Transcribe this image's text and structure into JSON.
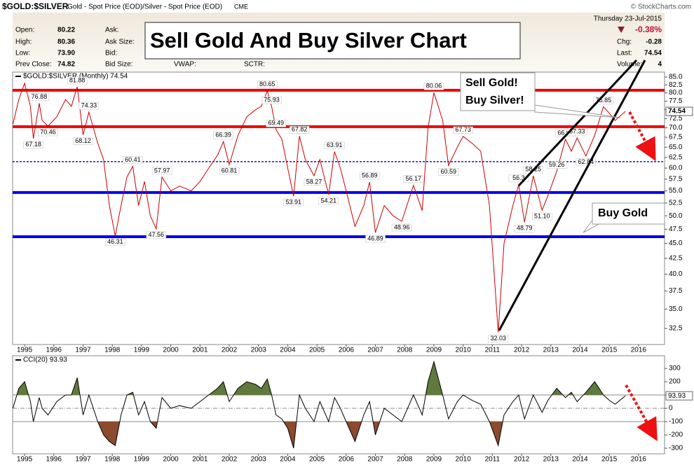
{
  "header": {
    "symbol": "$GOLD:$SILVER",
    "description": "Gold - Spot Price (EOD)/Silver - Spot Price (EOD)",
    "exchange": "CME",
    "source": "© StockCharts.com",
    "date": "Thursday 23-Jul-2015",
    "change_pct": "-0.38%",
    "stats": [
      [
        "Open:",
        "80.22"
      ],
      [
        "High:",
        "80.36"
      ],
      [
        "Low:",
        "73.90"
      ],
      [
        "Prev Close:",
        "74.82"
      ]
    ],
    "fields": [
      "Ask:",
      "Ask Size:",
      "Bid:",
      "Bid Size:",
      "VWAP:",
      "SCTR:"
    ],
    "quote": [
      [
        "Chg:",
        "-0.28"
      ],
      [
        "Last:",
        "74.54"
      ],
      [
        "Volume:",
        "4"
      ]
    ],
    "title": "Sell Gold And Buy Silver Chart",
    "notes": [
      "Sell Gold!",
      "Buy Silver!",
      "Buy Gold"
    ]
  },
  "chart_data": [
    {
      "type": "line",
      "log_scale": true,
      "x": [
        1994.6,
        1994.8,
        1995.0,
        1995.2,
        1995.3,
        1995.5,
        1995.6,
        1995.8,
        1996.1,
        1996.4,
        1996.6,
        1996.8,
        1997.0,
        1997.2,
        1997.5,
        1997.7,
        1997.9,
        1998.1,
        1998.3,
        1998.5,
        1998.7,
        1998.9,
        1999.1,
        1999.3,
        1999.5,
        1999.7,
        2000.0,
        2000.3,
        2000.7,
        2001.0,
        2001.3,
        2001.6,
        2001.8,
        2002.0,
        2002.3,
        2002.6,
        2002.9,
        2003.1,
        2003.3,
        2003.45,
        2003.6,
        2003.8,
        2004.0,
        2004.2,
        2004.4,
        2004.6,
        2004.9,
        2005.1,
        2005.4,
        2005.6,
        2005.8,
        2006.0,
        2006.3,
        2006.6,
        2006.8,
        2007.0,
        2007.3,
        2007.6,
        2007.9,
        2008.3,
        2008.6,
        2008.8,
        2009.0,
        2009.3,
        2009.5,
        2009.8,
        2010.0,
        2010.3,
        2010.6,
        2010.9,
        2011.2,
        2011.4,
        2011.7,
        2011.9,
        2012.1,
        2012.4,
        2012.7,
        2012.9,
        2013.2,
        2013.5,
        2013.7,
        2013.9,
        2014.2,
        2014.5,
        2014.8,
        2015.0,
        2015.2,
        2015.55
      ],
      "series": [
        {
          "name": "$GOLD:$SILVER (Monthly) 74.54",
          "color": "#cc0000",
          "values": [
            71,
            78,
            83,
            76,
            67.18,
            76.88,
            72,
            70.46,
            73,
            78,
            76,
            81.88,
            68.12,
            74.33,
            66,
            62,
            52,
            46.31,
            52,
            58,
            60.41,
            52,
            57,
            50,
            47.56,
            57.97,
            55,
            56,
            55,
            57,
            60,
            63,
            66.39,
            60.81,
            68,
            73,
            75,
            76,
            80.65,
            75.93,
            69.49,
            67,
            60,
            53.91,
            67.82,
            62,
            58.27,
            62,
            54.21,
            63.91,
            60,
            55,
            48,
            52,
            56.89,
            46.89,
            52,
            50,
            48.96,
            56.17,
            51,
            70,
            80.06,
            72,
            60.59,
            65,
            67.73,
            66,
            64,
            52,
            32.03,
            45,
            52,
            56.3,
            48.79,
            58.25,
            51.1,
            54,
            59.26,
            66.98,
            64,
            67.33,
            62.84,
            68,
            75.85,
            74,
            72,
            74.54
          ],
          "value_labels": [
            null,
            null,
            null,
            null,
            "67.18",
            "76.88",
            null,
            "70.46",
            null,
            null,
            null,
            "81.88",
            "68.12",
            "74.33",
            null,
            null,
            null,
            "46.31",
            null,
            null,
            "60.41",
            null,
            null,
            null,
            "47.56",
            "57.97",
            null,
            null,
            null,
            null,
            null,
            null,
            "66.39",
            "60.81",
            null,
            null,
            null,
            null,
            "80.65",
            "75.93",
            "69.49",
            null,
            null,
            "53.91",
            "67.82",
            null,
            "58.27",
            null,
            "54.21",
            "63.91",
            null,
            null,
            null,
            null,
            "56.89",
            "46.89",
            null,
            null,
            "48.96",
            "56.17",
            null,
            null,
            "80.06",
            null,
            "60.59",
            null,
            "67.73",
            null,
            null,
            null,
            "32.03",
            null,
            null,
            "56.3",
            "48.79",
            "58.25",
            "51.10",
            null,
            "59.26",
            "66.98",
            null,
            "67.33",
            "62.84",
            null,
            "75.85",
            null,
            null,
            null
          ]
        }
      ],
      "xlim": [
        1994.59,
        2016.89
      ],
      "xticks": [
        1995,
        1996,
        1997,
        1998,
        1999,
        2000,
        2001,
        2002,
        2003,
        2004,
        2005,
        2006,
        2007,
        2008,
        2009,
        2010,
        2011,
        2012,
        2013,
        2014,
        2015,
        2016
      ],
      "ylim": [
        30.56,
        86.6
      ],
      "yticks": [
        {
          "value": 85,
          "label": "85.0"
        },
        {
          "value": 82.5,
          "label": "82.5"
        },
        {
          "value": 80,
          "label": "80.0"
        },
        {
          "value": 77.5,
          "label": "77.5"
        },
        {
          "value": 75,
          "label": "75.0"
        },
        {
          "value": 72.5,
          "label": "72.5"
        },
        {
          "value": 70,
          "label": "70.0"
        },
        {
          "value": 67.5,
          "label": "67.5"
        },
        {
          "value": 65,
          "label": "65.0"
        },
        {
          "value": 62.5,
          "label": "62.5"
        },
        {
          "value": 60,
          "label": "60.0"
        },
        {
          "value": 57.5,
          "label": "57.5"
        },
        {
          "value": 55,
          "label": "55.0"
        },
        {
          "value": 52.5,
          "label": "52.5"
        },
        {
          "value": 50,
          "label": "50.0"
        },
        {
          "value": 47.5,
          "label": "47.5"
        },
        {
          "value": 45,
          "label": "45.0"
        },
        {
          "value": 42.5,
          "label": "42.5"
        },
        {
          "value": 40,
          "label": "40.0"
        },
        {
          "value": 37.5,
          "label": "37.5"
        },
        {
          "value": 35,
          "label": "35.0"
        },
        {
          "value": 32.5,
          "label": "32.5"
        }
      ],
      "hlines": [
        {
          "value": 80.8,
          "color": "#ee0000",
          "style": "solid"
        },
        {
          "value": 70.3,
          "color": "#ee0000",
          "style": "solid"
        },
        {
          "value": 61.5,
          "color": "#0000cc",
          "style": "dashed"
        },
        {
          "value": 54.65,
          "color": "#0000ee",
          "style": "solid"
        },
        {
          "value": 46.15,
          "color": "#0000ee",
          "style": "solid"
        }
      ]
    },
    {
      "type": "line",
      "x": [
        1994.6,
        1994.8,
        1995.0,
        1995.2,
        1995.3,
        1995.5,
        1995.6,
        1995.8,
        1996.1,
        1996.4,
        1996.6,
        1996.8,
        1997.0,
        1997.2,
        1997.5,
        1997.7,
        1997.9,
        1998.1,
        1998.3,
        1998.5,
        1998.7,
        1998.9,
        1999.1,
        1999.3,
        1999.5,
        1999.7,
        2000.0,
        2000.3,
        2000.7,
        2001.0,
        2001.3,
        2001.6,
        2001.8,
        2002.0,
        2002.3,
        2002.6,
        2002.9,
        2003.1,
        2003.3,
        2003.45,
        2003.6,
        2003.8,
        2004.0,
        2004.2,
        2004.4,
        2004.6,
        2004.9,
        2005.1,
        2005.4,
        2005.6,
        2005.8,
        2006.0,
        2006.3,
        2006.6,
        2006.8,
        2007.0,
        2007.3,
        2007.6,
        2007.9,
        2008.3,
        2008.6,
        2008.8,
        2009.0,
        2009.3,
        2009.5,
        2009.8,
        2010.0,
        2010.3,
        2010.6,
        2010.9,
        2011.2,
        2011.4,
        2011.7,
        2011.9,
        2012.1,
        2012.4,
        2012.7,
        2012.9,
        2013.2,
        2013.5,
        2013.7,
        2013.9,
        2014.2,
        2014.5,
        2014.8,
        2015.0,
        2015.2,
        2015.55
      ],
      "series": [
        {
          "name": "CCI(20) 93.93",
          "color": "#000000",
          "values": [
            0,
            150,
            200,
            50,
            -100,
            80,
            0,
            -50,
            50,
            100,
            100,
            230,
            -50,
            100,
            -100,
            -200,
            -250,
            -280,
            -50,
            100,
            120,
            -50,
            50,
            -100,
            -150,
            80,
            0,
            20,
            0,
            50,
            100,
            150,
            200,
            50,
            150,
            200,
            180,
            150,
            220,
            100,
            -50,
            -80,
            -150,
            -300,
            100,
            0,
            -100,
            50,
            -100,
            80,
            0,
            -100,
            -250,
            -50,
            50,
            -200,
            0,
            -50,
            -100,
            100,
            -50,
            200,
            350,
            100,
            -80,
            50,
            100,
            60,
            30,
            -100,
            -280,
            -50,
            50,
            100,
            -80,
            100,
            -30,
            60,
            150,
            80,
            120,
            50,
            120,
            200,
            100,
            60,
            30,
            93.93
          ]
        }
      ],
      "fills": [
        {
          "above": 100,
          "color": "#5e7a3c"
        },
        {
          "below": -100,
          "color": "#8c4a2e"
        }
      ],
      "xlim": [
        1994.59,
        2016.89
      ],
      "xticks": [
        1995,
        1996,
        1997,
        1998,
        1999,
        2000,
        2001,
        2002,
        2003,
        2004,
        2005,
        2006,
        2007,
        2008,
        2009,
        2010,
        2011,
        2012,
        2013,
        2014,
        2015,
        2016
      ],
      "ylim": [
        -342,
        395
      ],
      "yticks": [
        300,
        200,
        100,
        0,
        -100,
        -200,
        -300
      ],
      "hlines": [
        {
          "value": 100,
          "color": "#888888",
          "style": "solid"
        },
        {
          "value": 0,
          "color": "#888888",
          "style": "dashdot"
        },
        {
          "value": -100,
          "color": "#888888",
          "style": "solid"
        }
      ]
    }
  ]
}
